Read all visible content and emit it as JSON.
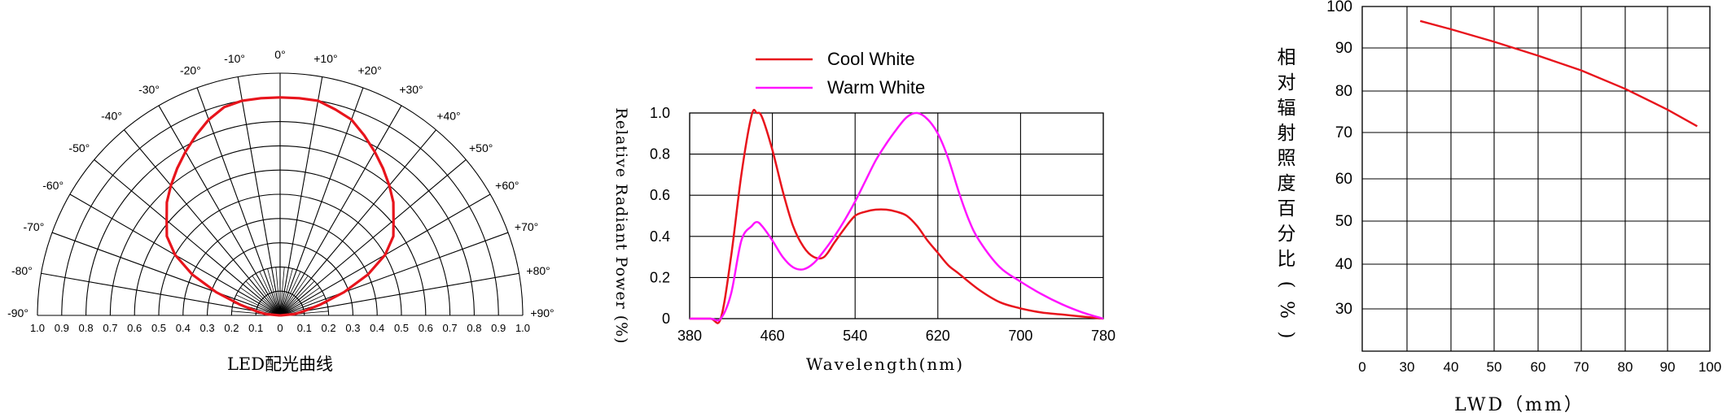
{
  "chart_data": [
    {
      "type": "polar",
      "title": "LED配光曲线",
      "radial_ticks": [
        "1.0",
        "0.9",
        "0.8",
        "0.7",
        "0.6",
        "0.5",
        "0.4",
        "0.3",
        "0.2",
        "0.1",
        "0",
        "0.1",
        "0.2",
        "0.3",
        "0.4",
        "0.5",
        "0.6",
        "0.7",
        "0.8",
        "0.9",
        "1.0"
      ],
      "angle_ticks": [
        "-90°",
        "-80°",
        "-70°",
        "-60°",
        "-50°",
        "-40°",
        "-30°",
        "-20°",
        "-10°",
        "0°",
        "+10°",
        "+20°",
        "+30°",
        "+40°",
        "+50°",
        "+60°",
        "+70°",
        "+80°",
        "+90°"
      ],
      "angles_deg": [
        -90,
        -80,
        -70,
        -60,
        -50,
        -40,
        -30,
        -20,
        -10,
        0,
        10,
        20,
        30,
        40,
        50,
        60,
        70,
        80,
        90
      ],
      "series": [
        {
          "color": "#e8141c",
          "angles": [
            -90,
            -85,
            -80,
            -75,
            -70,
            -65,
            -60,
            -55,
            -50,
            -45,
            -40,
            -35,
            -30,
            -25,
            -20,
            -15,
            -10,
            -5,
            0,
            5,
            10,
            15,
            20,
            25,
            30,
            35,
            40,
            45,
            50,
            55,
            60,
            65,
            70,
            75,
            80,
            85,
            90
          ],
          "values": [
            0,
            0.06,
            0.1,
            0.17,
            0.28,
            0.4,
            0.5,
            0.57,
            0.61,
            0.66,
            0.7,
            0.74,
            0.78,
            0.82,
            0.86,
            0.89,
            0.9,
            0.9,
            0.9,
            0.9,
            0.9,
            0.88,
            0.86,
            0.82,
            0.78,
            0.74,
            0.7,
            0.66,
            0.61,
            0.57,
            0.5,
            0.4,
            0.28,
            0.17,
            0.1,
            0.06,
            0
          ]
        }
      ],
      "rlim": [
        0,
        1.0
      ]
    },
    {
      "type": "line",
      "xlabel": "Wavelength(nm)",
      "ylabel": "Relative Radiant Power (%)",
      "x_ticks": [
        "380",
        "460",
        "540",
        "620",
        "700",
        "780"
      ],
      "y_ticks": [
        "0",
        "0.2",
        "0.4",
        "0.6",
        "0.8",
        "1.0"
      ],
      "xlim": [
        380,
        780
      ],
      "ylim": [
        0,
        1.0
      ],
      "series": [
        {
          "name": "Cool White",
          "color": "#e8141c",
          "x": [
            380,
            400,
            410,
            420,
            430,
            440,
            445,
            450,
            460,
            470,
            480,
            490,
            500,
            510,
            520,
            530,
            540,
            550,
            560,
            570,
            580,
            590,
            600,
            610,
            620,
            630,
            640,
            660,
            680,
            700,
            720,
            740,
            760,
            780
          ],
          "y": [
            0,
            0,
            0,
            0.3,
            0.7,
            0.99,
            1.0,
            0.98,
            0.82,
            0.62,
            0.45,
            0.35,
            0.3,
            0.3,
            0.37,
            0.44,
            0.5,
            0.52,
            0.53,
            0.53,
            0.52,
            0.5,
            0.45,
            0.38,
            0.32,
            0.26,
            0.22,
            0.14,
            0.08,
            0.05,
            0.03,
            0.02,
            0.01,
            0
          ]
        },
        {
          "name": "Warm White",
          "color": "#ff14ff",
          "x": [
            380,
            400,
            410,
            420,
            430,
            440,
            445,
            450,
            460,
            470,
            480,
            490,
            500,
            510,
            520,
            530,
            540,
            550,
            560,
            570,
            580,
            590,
            600,
            610,
            620,
            630,
            640,
            650,
            660,
            680,
            700,
            720,
            740,
            760,
            780
          ],
          "y": [
            0,
            0,
            0,
            0.12,
            0.38,
            0.45,
            0.47,
            0.45,
            0.38,
            0.3,
            0.25,
            0.24,
            0.27,
            0.33,
            0.4,
            0.48,
            0.57,
            0.67,
            0.77,
            0.85,
            0.92,
            0.98,
            1.0,
            0.97,
            0.9,
            0.78,
            0.62,
            0.48,
            0.38,
            0.25,
            0.18,
            0.12,
            0.07,
            0.03,
            0
          ]
        }
      ]
    },
    {
      "type": "line",
      "ylabel": "相对辐射照度百分比(%)",
      "xlabel": "LWD（mm）",
      "x_ticks": [
        "0",
        "30",
        "40",
        "50",
        "60",
        "70",
        "80",
        "90",
        "100"
      ],
      "y_ticks": [
        "100",
        "90",
        "80",
        "70",
        "60",
        "50",
        "40",
        "30"
      ],
      "series": [
        {
          "color": "#e8141c",
          "x": [
            33,
            40,
            50,
            60,
            70,
            80,
            90,
            97
          ],
          "y": [
            96.5,
            94.5,
            91.5,
            88.2,
            84.8,
            80.5,
            75.5,
            71.5
          ]
        }
      ]
    }
  ]
}
